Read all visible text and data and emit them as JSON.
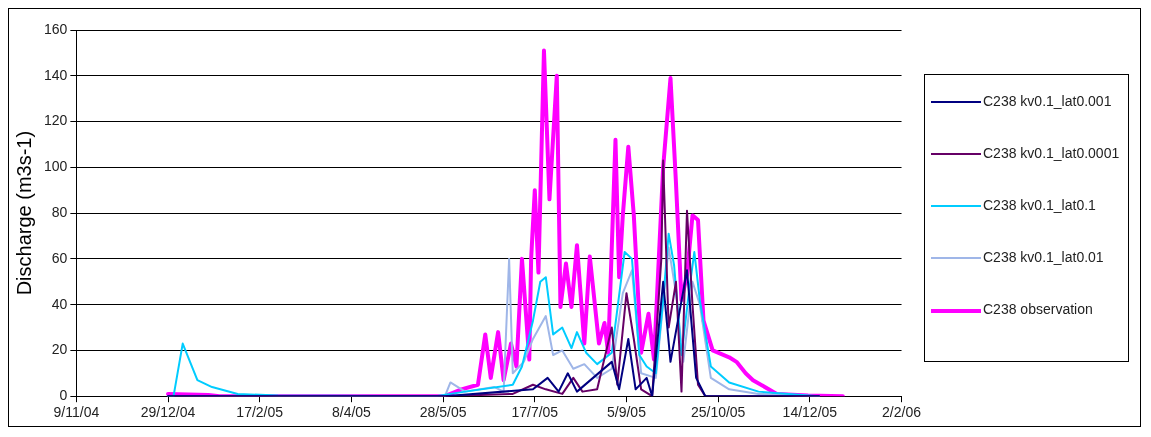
{
  "chart_data": {
    "type": "line",
    "ylabel": "Discharge (m3s-1)",
    "xlim": [
      "2004-11-09",
      "2006-02-02"
    ],
    "xticks": [
      {
        "value": "2004-11-09",
        "label": "9/11/04"
      },
      {
        "value": "2004-12-29",
        "label": "29/12/04"
      },
      {
        "value": "2005-02-17",
        "label": "17/2/05"
      },
      {
        "value": "2005-04-08",
        "label": "8/4/05"
      },
      {
        "value": "2005-05-28",
        "label": "28/5/05"
      },
      {
        "value": "2005-07-17",
        "label": "17/7/05"
      },
      {
        "value": "2005-09-05",
        "label": "5/9/05"
      },
      {
        "value": "2005-10-25",
        "label": "25/10/05"
      },
      {
        "value": "2005-12-14",
        "label": "14/12/05"
      },
      {
        "value": "2006-02-02",
        "label": "2/2/06"
      }
    ],
    "ylim": [
      0,
      160
    ],
    "yticks": [
      0,
      20,
      40,
      60,
      80,
      100,
      120,
      140,
      160
    ],
    "grid": "y",
    "legend": "right",
    "marker": "none",
    "line_style": "solid",
    "series": [
      {
        "name": "C238 kv0.1_lat0.001",
        "color": "#000080",
        "x": [
          "2004-12-29",
          "2005-05-29",
          "2005-07-16",
          "2005-07-24",
          "2005-07-30",
          "2005-08-04",
          "2005-08-09",
          "2005-08-28",
          "2005-09-01",
          "2005-09-06",
          "2005-09-10",
          "2005-09-16",
          "2005-09-19",
          "2005-09-25",
          "2005-09-29",
          "2005-10-08",
          "2005-10-13",
          "2005-10-18",
          "2005-12-19"
        ],
        "values": [
          0,
          0,
          3,
          8,
          2,
          10,
          2,
          15,
          3,
          25,
          3,
          8,
          0,
          50,
          15,
          55,
          8,
          0,
          0
        ]
      },
      {
        "name": "C238 kv0.1_lat0.0001",
        "color": "#660066",
        "x": [
          "2004-12-29",
          "2005-05-29",
          "2005-07-05",
          "2005-07-16",
          "2005-07-23",
          "2005-08-01",
          "2005-08-07",
          "2005-08-12",
          "2005-08-20",
          "2005-08-28",
          "2005-08-31",
          "2005-09-05",
          "2005-09-09",
          "2005-09-13",
          "2005-09-19",
          "2005-09-24",
          "2005-09-25",
          "2005-09-28",
          "2005-10-02",
          "2005-10-05",
          "2005-10-08",
          "2005-10-11",
          "2005-10-14",
          "2005-10-18",
          "2005-12-19"
        ],
        "values": [
          0,
          0,
          1,
          5,
          3,
          1,
          8,
          2,
          3,
          30,
          5,
          45,
          25,
          3,
          0,
          60,
          103,
          30,
          50,
          2,
          81,
          40,
          5,
          0,
          0
        ]
      },
      {
        "name": "C238 kv0.1_lat0.1",
        "color": "#00ccff",
        "x": [
          "2004-12-29",
          "2005-01-01",
          "2005-01-06",
          "2005-01-14",
          "2005-01-22",
          "2005-02-05",
          "2005-02-27",
          "2005-05-24",
          "2005-06-09",
          "2005-07-05",
          "2005-07-10",
          "2005-07-16",
          "2005-07-20",
          "2005-07-23",
          "2005-07-27",
          "2005-08-01",
          "2005-08-06",
          "2005-08-09",
          "2005-08-14",
          "2005-08-20",
          "2005-08-28",
          "2005-09-04",
          "2005-09-08",
          "2005-09-12",
          "2005-09-16",
          "2005-09-21",
          "2005-09-25",
          "2005-09-28",
          "2005-10-01",
          "2005-10-05",
          "2005-10-09",
          "2005-10-12",
          "2005-10-15",
          "2005-10-21",
          "2005-10-31",
          "2005-11-16",
          "2005-12-19"
        ],
        "values": [
          0,
          0,
          23,
          7,
          4,
          1,
          0.3,
          0,
          2,
          5,
          13,
          33,
          50,
          52,
          27,
          30,
          21,
          28,
          19,
          14,
          19,
          63,
          60,
          18,
          13,
          10,
          42,
          71,
          57,
          18,
          45,
          63,
          42,
          13,
          6,
          2,
          0
        ]
      },
      {
        "name": "C238 kv0.1_lat0.01",
        "color": "#9fb6e8",
        "x": [
          "2004-12-29",
          "2005-05-29",
          "2005-06-01",
          "2005-06-09",
          "2005-06-25",
          "2005-06-30",
          "2005-07-03",
          "2005-07-05",
          "2005-07-11",
          "2005-07-16",
          "2005-07-23",
          "2005-07-27",
          "2005-08-01",
          "2005-08-07",
          "2005-08-13",
          "2005-08-20",
          "2005-08-28",
          "2005-09-03",
          "2005-09-08",
          "2005-09-13",
          "2005-09-21",
          "2005-09-28",
          "2005-10-02",
          "2005-10-06",
          "2005-10-11",
          "2005-10-15",
          "2005-10-21",
          "2005-10-31",
          "2005-11-16",
          "2005-12-19"
        ],
        "values": [
          0,
          0,
          6,
          2,
          4,
          2,
          60,
          10,
          15,
          25,
          35,
          18,
          20,
          12,
          14,
          8,
          12,
          45,
          55,
          10,
          8,
          65,
          45,
          15,
          50,
          40,
          8,
          3,
          1,
          0
        ]
      },
      {
        "name": "C238 observation",
        "color": "#ff00ff",
        "x": [
          "2004-12-29",
          "2005-01-20",
          "2005-01-26",
          "2005-05-29",
          "2005-06-07",
          "2005-06-16",
          "2005-06-20",
          "2005-06-23",
          "2005-06-27",
          "2005-06-30",
          "2005-07-04",
          "2005-07-07",
          "2005-07-10",
          "2005-07-14",
          "2005-07-15",
          "2005-07-17",
          "2005-07-19",
          "2005-07-22",
          "2005-07-25",
          "2005-07-29",
          "2005-07-31",
          "2005-08-03",
          "2005-08-06",
          "2005-08-09",
          "2005-08-13",
          "2005-08-16",
          "2005-08-21",
          "2005-08-24",
          "2005-08-26",
          "2005-08-30",
          "2005-09-01",
          "2005-09-03",
          "2005-09-06",
          "2005-09-09",
          "2005-09-13",
          "2005-09-17",
          "2005-09-20",
          "2005-09-25",
          "2005-09-29",
          "2005-10-02",
          "2005-10-05",
          "2005-10-08",
          "2005-10-11",
          "2005-10-14",
          "2005-10-17",
          "2005-10-22",
          "2005-10-31",
          "2005-11-04",
          "2005-11-09",
          "2005-11-13",
          "2005-11-26",
          "2005-12-13",
          "2006-01-01"
        ],
        "values": [
          1,
          0.5,
          0,
          0,
          3,
          5,
          27,
          8,
          28,
          7,
          23,
          13,
          60,
          16,
          60,
          90,
          54,
          151,
          86,
          140,
          39,
          58,
          39,
          66,
          23,
          61,
          23,
          32,
          19,
          112,
          52,
          79,
          109,
          79,
          19,
          36,
          16,
          100,
          139,
          93,
          42,
          53,
          79,
          77,
          33,
          20,
          17,
          15,
          10,
          7,
          1,
          0.3,
          0
        ]
      }
    ]
  }
}
